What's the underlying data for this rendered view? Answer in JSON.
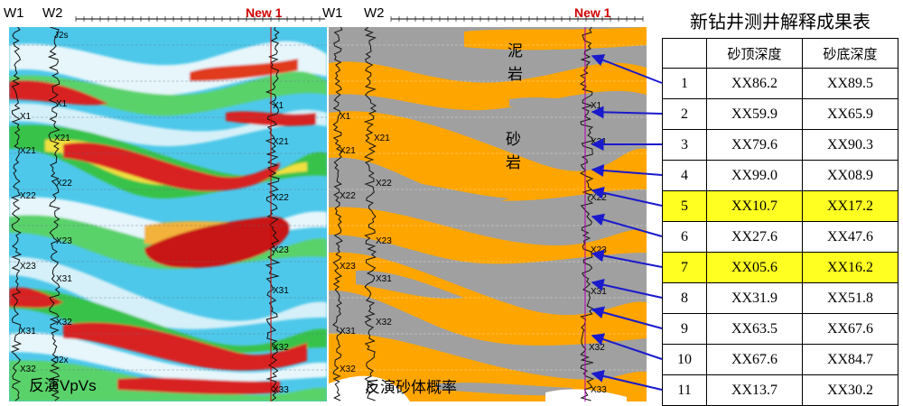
{
  "left_panel": {
    "well_labels": [
      "W1",
      "W2",
      "New 1"
    ],
    "caption": "反演VpVs",
    "horizons": [
      "J2s",
      "X1",
      "X21",
      "X22",
      "X23",
      "X31",
      "X32",
      "J2x",
      "X33"
    ]
  },
  "right_panel": {
    "well_labels": [
      "W1",
      "W2",
      "New 1"
    ],
    "caption": "反演砂体概率",
    "rock_labels": [
      "泥",
      "岩",
      "砂",
      "岩"
    ],
    "horizons": [
      "X1",
      "X21",
      "X22",
      "X23",
      "X31",
      "X32",
      "X33"
    ]
  },
  "colors": {
    "new_well": "#d00000",
    "highlight": "#ffff22",
    "arrow": "#1a1acc",
    "sand": "#ffa500",
    "mud": "#a0a0a0"
  },
  "table": {
    "title": "新钻井测井解释成果表",
    "headers": [
      "",
      "砂顶深度",
      "砂底深度"
    ],
    "rows": [
      {
        "idx": "1",
        "top": "XX86.2",
        "bottom": "XX89.5",
        "highlight": false
      },
      {
        "idx": "2",
        "top": "XX59.9",
        "bottom": "XX65.9",
        "highlight": false
      },
      {
        "idx": "3",
        "top": "XX79.6",
        "bottom": "XX90.3",
        "highlight": false
      },
      {
        "idx": "4",
        "top": "XX99.0",
        "bottom": "XX08.9",
        "highlight": false
      },
      {
        "idx": "5",
        "top": "XX10.7",
        "bottom": "XX17.2",
        "highlight": true
      },
      {
        "idx": "6",
        "top": "XX27.6",
        "bottom": "XX47.6",
        "highlight": false
      },
      {
        "idx": "7",
        "top": "XX05.6",
        "bottom": "XX16.2",
        "highlight": true
      },
      {
        "idx": "8",
        "top": "XX31.9",
        "bottom": "XX51.8",
        "highlight": false
      },
      {
        "idx": "9",
        "top": "XX63.5",
        "bottom": "XX67.6",
        "highlight": false
      },
      {
        "idx": "10",
        "top": "XX67.6",
        "bottom": "XX84.7",
        "highlight": false
      },
      {
        "idx": "11",
        "top": "XX13.7",
        "bottom": "XX30.2",
        "highlight": false
      }
    ]
  }
}
